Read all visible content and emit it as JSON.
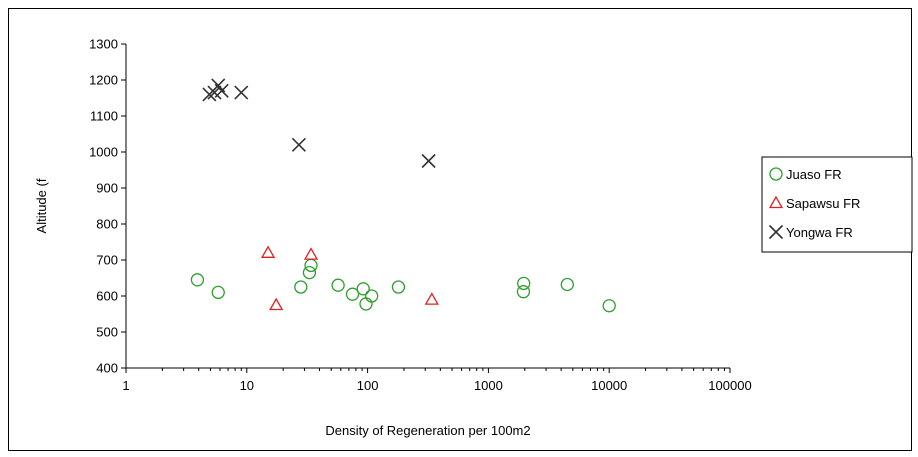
{
  "chart_data": {
    "type": "scatter",
    "title": "",
    "xlabel": "Density of Regeneration per 100m2",
    "ylabel": "Altitude (f",
    "x_scale": "log",
    "xlim": [
      1,
      100000
    ],
    "ylim": [
      400,
      1300
    ],
    "x_ticks": [
      "1",
      "10",
      "100",
      "1000",
      "10000",
      "100000"
    ],
    "y_ticks": [
      "400",
      "500",
      "600",
      "700",
      "800",
      "900",
      "1000",
      "1100",
      "1200",
      "1300"
    ],
    "grid": false,
    "legend_position": "right",
    "series": [
      {
        "name": "Juaso FR",
        "marker": "circle",
        "color": "#2e9e2e",
        "points": [
          [
            3.9,
            645
          ],
          [
            5.8,
            610
          ],
          [
            28,
            625
          ],
          [
            33,
            665
          ],
          [
            34,
            685
          ],
          [
            57,
            630
          ],
          [
            75,
            605
          ],
          [
            92,
            620
          ],
          [
            97,
            578
          ],
          [
            108,
            600
          ],
          [
            180,
            625
          ],
          [
            1950,
            612
          ],
          [
            1960,
            635
          ],
          [
            4500,
            632
          ],
          [
            10000,
            573
          ]
        ]
      },
      {
        "name": "Sapawsu FR",
        "marker": "triangle",
        "color": "#e02020",
        "points": [
          [
            15,
            720
          ],
          [
            17.5,
            575
          ],
          [
            34,
            715
          ],
          [
            340,
            590
          ]
        ]
      },
      {
        "name": "Yongwa FR",
        "marker": "x",
        "color": "#333333",
        "points": [
          [
            4.9,
            1160
          ],
          [
            5.4,
            1165
          ],
          [
            5.8,
            1185
          ],
          [
            6.2,
            1170
          ],
          [
            9,
            1165
          ],
          [
            27,
            1020
          ],
          [
            320,
            975
          ]
        ]
      }
    ]
  }
}
